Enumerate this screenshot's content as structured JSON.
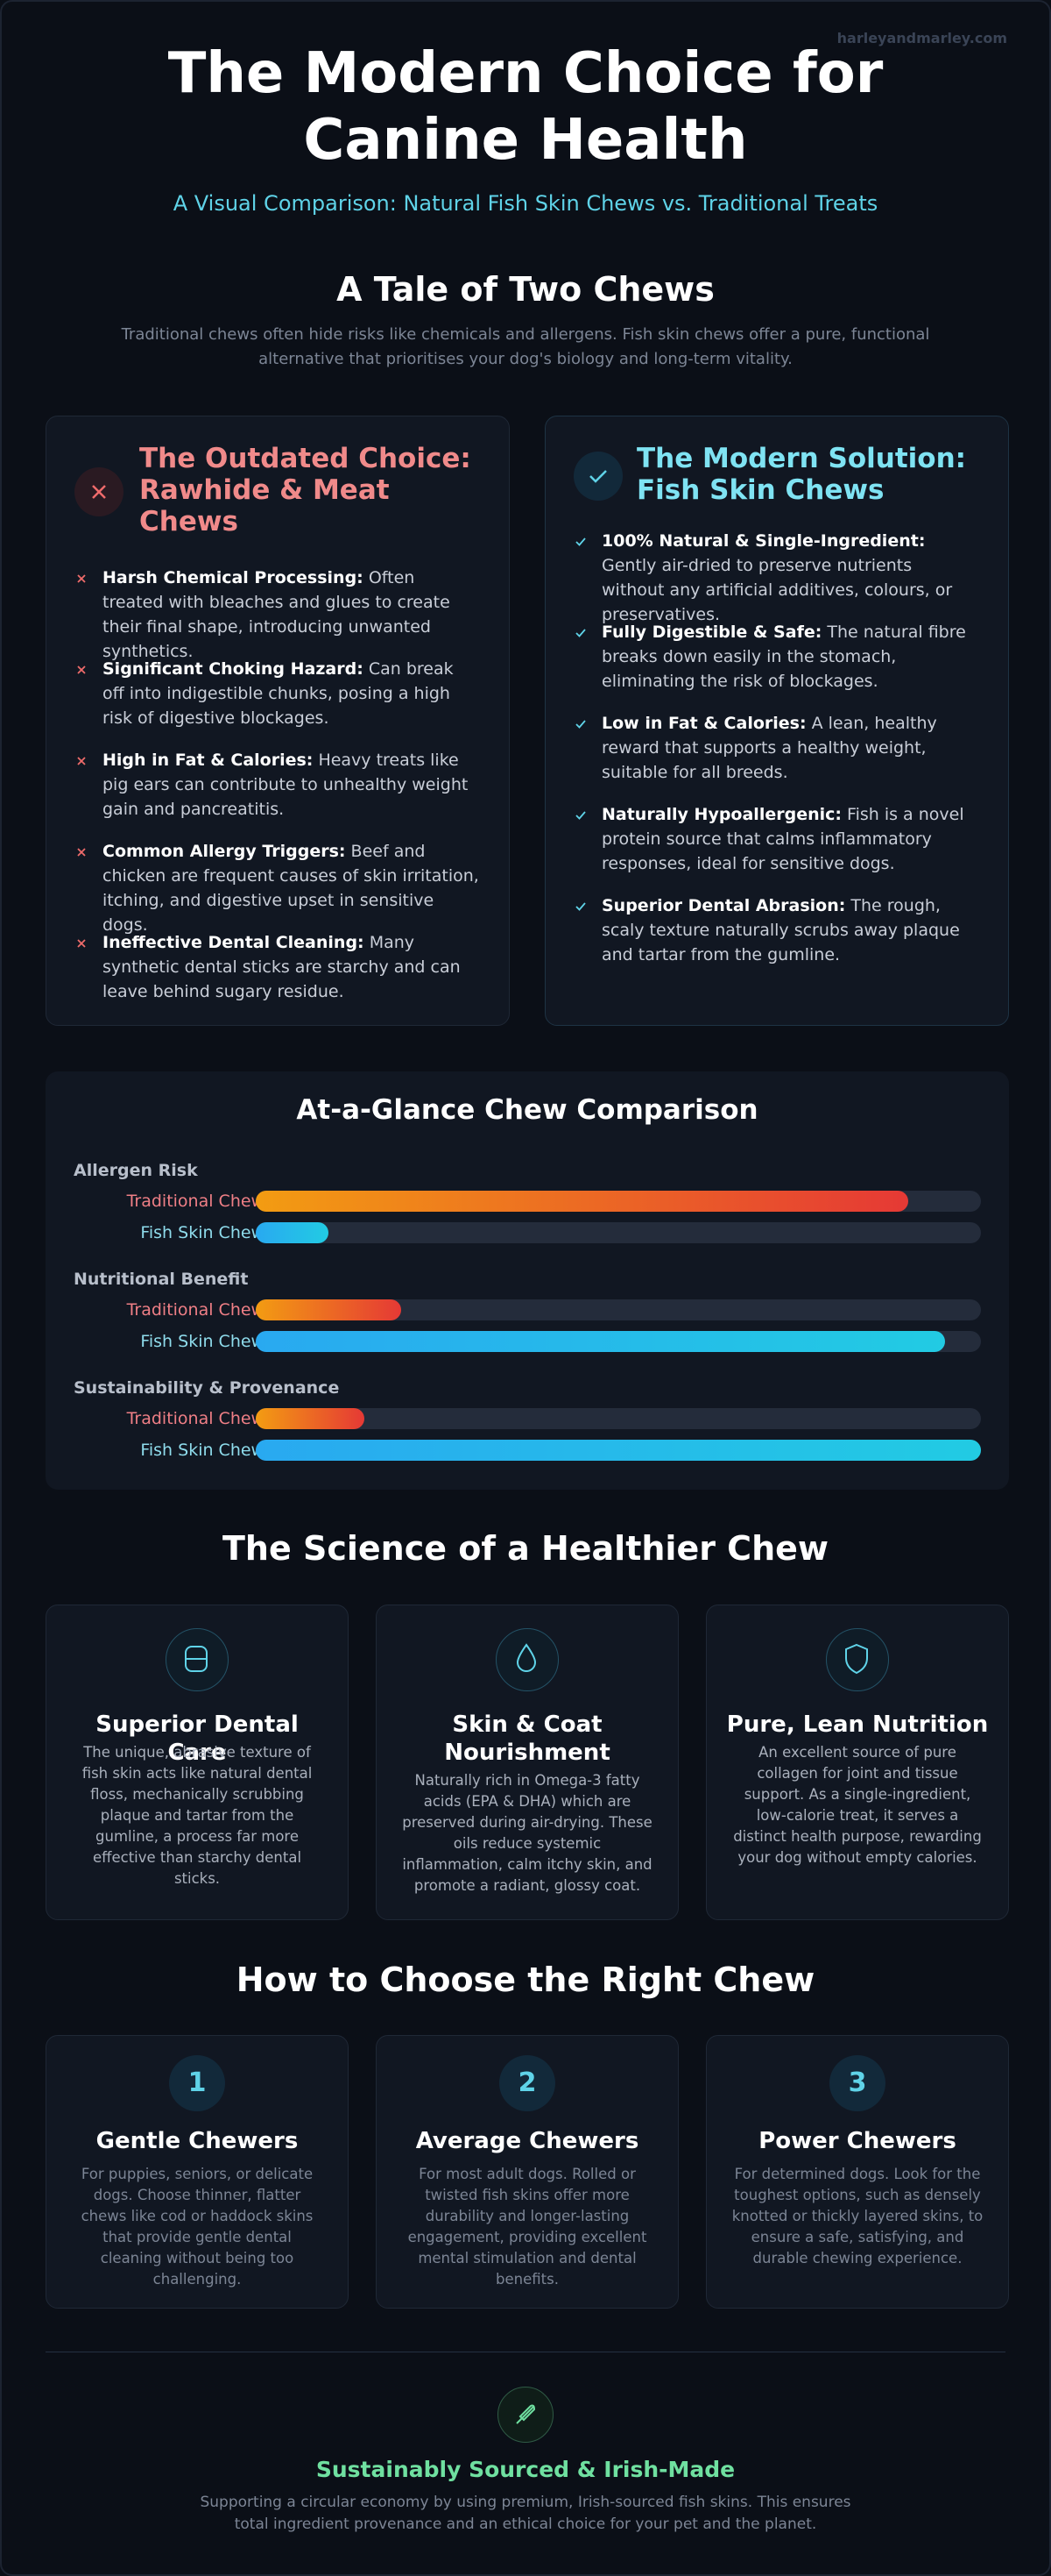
{
  "brand": "harleyandmarley.com",
  "header": {
    "title": "The Modern Choice for Canine Health",
    "subtitle": "A Visual Comparison: Natural Fish Skin Chews vs. Traditional Treats"
  },
  "tale": {
    "heading": "A Tale of Two Chews",
    "text": "Traditional chews often hide risks like chemicals and allergens. Fish skin chews offer a pure, functional alternative that prioritises your dog's biology and long-term vitality.",
    "cards": [
      {
        "title": "The Outdated Choice: Rawhide & Meat Chews",
        "items": [
          {
            "lead": "Harsh Chemical Processing:",
            "text": "Often treated with bleaches and glues to create their final shape, introducing unwanted synthetics."
          },
          {
            "lead": "Significant Choking Hazard:",
            "text": "Can break off into indigestible chunks, posing a high risk of digestive blockages."
          },
          {
            "lead": "High in Fat & Calories:",
            "text": "Heavy treats like pig ears can contribute to unhealthy weight gain and pancreatitis."
          },
          {
            "lead": "Common Allergy Triggers:",
            "text": "Beef and chicken are frequent causes of skin irritation, itching, and digestive upset in sensitive dogs."
          },
          {
            "lead": "Ineffective Dental Cleaning:",
            "text": "Many synthetic dental sticks are starchy and can leave behind sugary residue."
          }
        ]
      },
      {
        "title": "The Modern Solution: Fish Skin Chews",
        "items": [
          {
            "lead": "100% Natural & Single-Ingredient:",
            "text": "Gently air-dried to preserve nutrients without any artificial additives, colours, or preservatives."
          },
          {
            "lead": "Fully Digestible & Safe:",
            "text": "The natural fibre breaks down easily in the stomach, eliminating the risk of blockages."
          },
          {
            "lead": "Low in Fat & Calories:",
            "text": "A lean, healthy reward that supports a healthy weight, suitable for all breeds."
          },
          {
            "lead": "Naturally Hypoallergenic:",
            "text": "Fish is a novel protein source that calms inflammatory responses, ideal for sensitive dogs."
          },
          {
            "lead": "Superior Dental Abrasion:",
            "text": "The rough, scaly texture naturally scrubs away plaque and tartar from the gumline."
          }
        ]
      }
    ]
  },
  "chart_data": {
    "type": "bar",
    "title": "At-a-Glance Chew Comparison",
    "xlim": [
      0,
      100
    ],
    "categories": [
      "Allergen Risk",
      "Nutritional Benefit",
      "Sustainability & Provenance"
    ],
    "series": [
      {
        "name": "Traditional Chews",
        "color": [
          "#f39c12",
          "#e53935"
        ],
        "values": [
          90,
          20,
          15
        ]
      },
      {
        "name": "Fish Skin Chews",
        "color": [
          "#29a9f0",
          "#22cbe3"
        ],
        "values": [
          10,
          95,
          100
        ]
      }
    ]
  },
  "science": {
    "heading": "The Science of a Healthier Chew",
    "cards": [
      {
        "title": "Superior Dental Care",
        "text": "The unique, abrasive texture of fish skin acts like natural dental floss, mechanically scrubbing plaque and tartar from the gumline, a process far more effective than starchy dental sticks."
      },
      {
        "title": "Skin & Coat Nourishment",
        "text": "Naturally rich in Omega-3 fatty acids (EPA & DHA) which are preserved during air-drying. These oils reduce systemic inflammation, calm itchy skin, and promote a radiant, glossy coat."
      },
      {
        "title": "Pure, Lean Nutrition",
        "text": "An excellent source of pure collagen for joint and tissue support. As a single-ingredient, low-calorie treat, it serves a distinct health purpose, rewarding your dog without empty calories."
      }
    ]
  },
  "choose": {
    "heading": "How to Choose the Right Chew",
    "cards": [
      {
        "number": "1",
        "title": "Gentle Chewers",
        "text": "For puppies, seniors, or delicate dogs. Choose thinner, flatter chews like cod or haddock skins that provide gentle dental cleaning without being too challenging."
      },
      {
        "number": "2",
        "title": "Average Chewers",
        "text": "For most adult dogs. Rolled or twisted fish skins offer more durability and longer-lasting engagement, providing excellent mental stimulation and dental benefits."
      },
      {
        "number": "3",
        "title": "Power Chewers",
        "text": "For determined dogs. Look for the toughest options, such as densely knotted or thickly layered skins, to ensure a safe, satisfying, and durable chewing experience."
      }
    ]
  },
  "footer": {
    "title": "Sustainably Sourced & Irish-Made",
    "text": "Supporting a circular economy by using premium, Irish-sourced fish skins. This ensures total ingredient provenance and an ethical choice for your pet and the planet."
  }
}
